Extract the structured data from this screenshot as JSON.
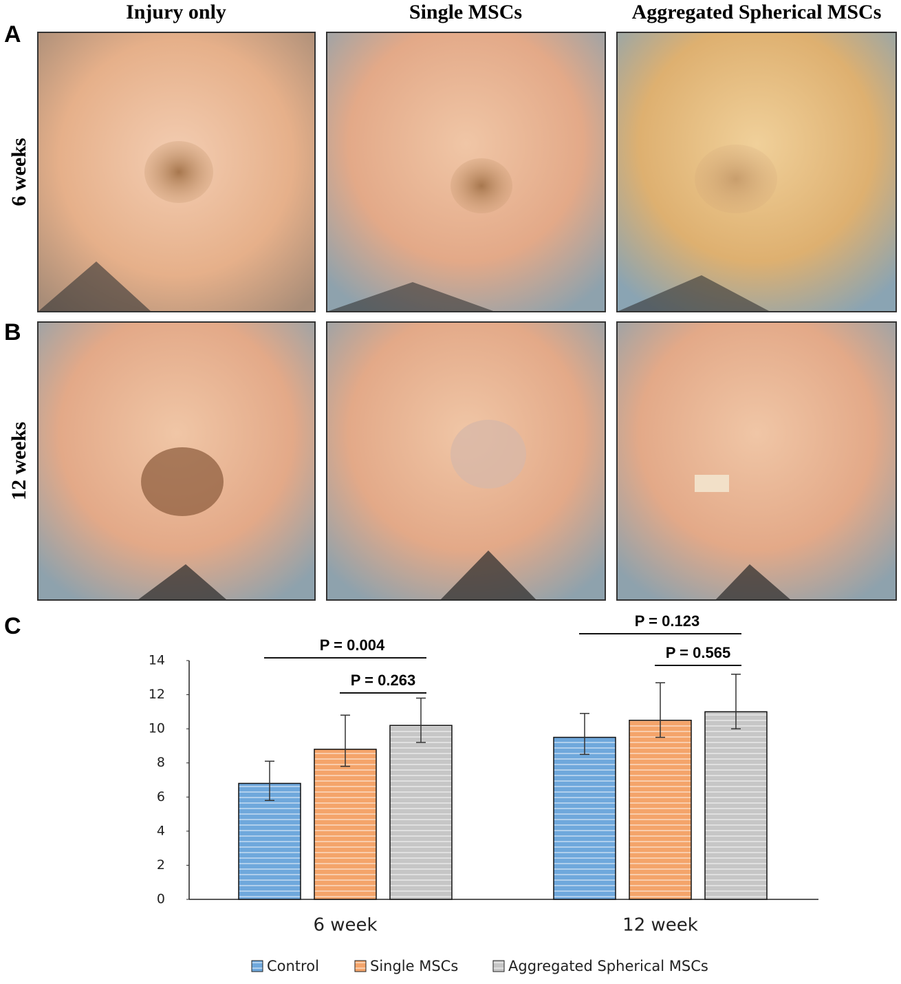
{
  "column_headers": [
    "Injury only",
    "Single MSCs",
    "Aggregated Spherical MSCs"
  ],
  "rows": [
    {
      "panel": "A",
      "label": "6 weeks"
    },
    {
      "panel": "B",
      "label": "12 weeks"
    }
  ],
  "chart_panel": "C",
  "chart_data": {
    "type": "bar",
    "categories": [
      "6 week",
      "12 week"
    ],
    "series": [
      {
        "name": "Control",
        "color": "#6fa8dc",
        "values": [
          6.8,
          9.5
        ],
        "errors_upper": [
          1.3,
          1.4
        ],
        "errors_lower": [
          1.0,
          1.0
        ]
      },
      {
        "name": "Single MSCs",
        "color": "#f4a46a",
        "values": [
          8.8,
          10.5
        ],
        "errors_upper": [
          2.0,
          2.2
        ],
        "errors_lower": [
          1.0,
          1.0
        ]
      },
      {
        "name": "Aggregated Spherical MSCs",
        "color": "#c6c6c6",
        "values": [
          10.2,
          11.0
        ],
        "errors_upper": [
          1.6,
          2.2
        ],
        "errors_lower": [
          1.0,
          1.0
        ]
      }
    ],
    "ylim": [
      0,
      14
    ],
    "yticks": [
      0,
      2,
      4,
      6,
      8,
      10,
      12,
      14
    ],
    "annotations": [
      {
        "text": "P = 0.004",
        "category": 0,
        "series": [
          0,
          2
        ]
      },
      {
        "text": "P = 0.263",
        "category": 0,
        "series": [
          1,
          2
        ]
      },
      {
        "text": "P = 0.123",
        "category": 1,
        "series": [
          0,
          2
        ]
      },
      {
        "text": "P = 0.565",
        "category": 1,
        "series": [
          1,
          2
        ]
      }
    ],
    "legend": "bottom"
  }
}
